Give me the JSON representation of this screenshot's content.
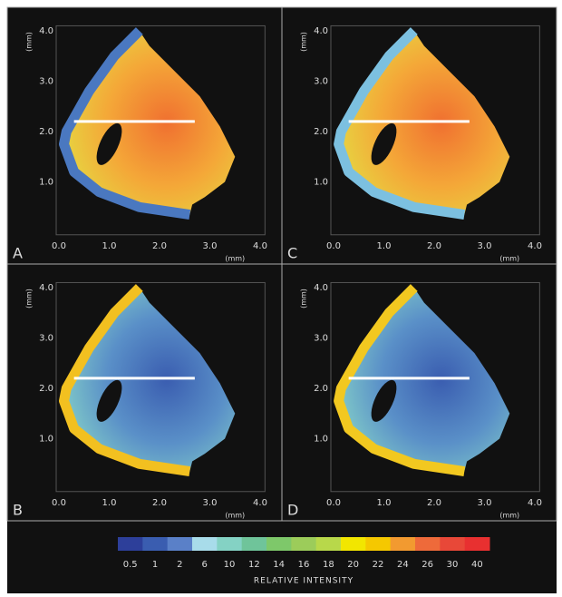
{
  "panels": [
    {
      "label": "A",
      "x_ticks": [
        "0.0",
        "1.0",
        "2.0",
        "3.0",
        "4.0"
      ],
      "y_ticks": [
        "4.0",
        "3.0",
        "2.0",
        "1.0"
      ],
      "x_unit": "(mm)",
      "y_unit": "(mm)"
    },
    {
      "label": "B",
      "x_ticks": [
        "0.0",
        "1.0",
        "2.0",
        "3.0",
        "4.0"
      ],
      "y_ticks": [
        "4.0",
        "3.0",
        "2.0",
        "1.0"
      ],
      "x_unit": "(mm)",
      "y_unit": "(mm)"
    },
    {
      "label": "C",
      "x_ticks": [
        "0.0",
        "1.0",
        "2.0",
        "3.0",
        "4.0"
      ],
      "y_ticks": [
        "4.0",
        "3.0",
        "2.0",
        "1.0"
      ],
      "x_unit": "(mm)",
      "y_unit": "(mm)"
    },
    {
      "label": "D",
      "x_ticks": [
        "0.0",
        "1.0",
        "2.0",
        "3.0",
        "4.0"
      ],
      "y_ticks": [
        "4.0",
        "3.0",
        "2.0",
        "1.0"
      ],
      "x_unit": "(mm)",
      "y_unit": "(mm)"
    }
  ],
  "colorbar": {
    "colors": [
      "#2d3f9a",
      "#3a5db0",
      "#5a80c8",
      "#a8dcea",
      "#84d2c4",
      "#6fc49a",
      "#7ec86a",
      "#9ccc5a",
      "#b8d84a",
      "#f2e600",
      "#f5c800",
      "#f29a30",
      "#ee6a3a",
      "#e84838",
      "#e83030"
    ],
    "labels": [
      "0.5",
      "1",
      "2",
      "6",
      "10",
      "12",
      "14",
      "16",
      "18",
      "20",
      "22",
      "24",
      "26",
      "30",
      "40"
    ],
    "title": "RELATIVE INTENSITY"
  }
}
